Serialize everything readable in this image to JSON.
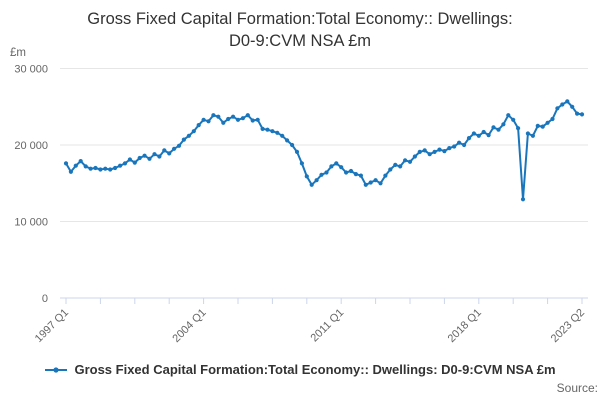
{
  "header": {
    "title_line1": "Gross Fixed Capital Formation:Total Economy:: Dwellings:",
    "title_line2": "D0-9:CVM NSA £m"
  },
  "legend": {
    "label": "Gross Fixed Capital Formation:Total Economy:: Dwellings: D0-9:CVM NSA £m"
  },
  "footer": {
    "source_label": "Source:"
  },
  "chart_data": {
    "type": "line",
    "title": "Gross Fixed Capital Formation:Total Economy:: Dwellings: D0-9:CVM NSA £m",
    "series_name": "Gross Fixed Capital Formation:Total Economy:: Dwellings: D0-9:CVM NSA £m",
    "unit": "£m",
    "ylim": [
      0,
      30000
    ],
    "grid": true,
    "legend_position": "bottom",
    "y_ticks": [
      {
        "value": 0,
        "label": "0"
      },
      {
        "value": 10000,
        "label": "10 000"
      },
      {
        "value": 20000,
        "label": "20 000"
      },
      {
        "value": 30000,
        "label": "30 000"
      }
    ],
    "x_tick_every": 7,
    "x_labeled_ticks": [
      {
        "index": 0,
        "label": "1997 Q1"
      },
      {
        "index": 28,
        "label": "2004 Q1"
      },
      {
        "index": 56,
        "label": "2011 Q1"
      },
      {
        "index": 84,
        "label": "2018 Q1"
      },
      {
        "index": 105,
        "label": "2023 Q2"
      }
    ],
    "categories": [
      "1997 Q1",
      "1997 Q2",
      "1997 Q3",
      "1997 Q4",
      "1998 Q1",
      "1998 Q2",
      "1998 Q3",
      "1998 Q4",
      "1999 Q1",
      "1999 Q2",
      "1999 Q3",
      "1999 Q4",
      "2000 Q1",
      "2000 Q2",
      "2000 Q3",
      "2000 Q4",
      "2001 Q1",
      "2001 Q2",
      "2001 Q3",
      "2001 Q4",
      "2002 Q1",
      "2002 Q2",
      "2002 Q3",
      "2002 Q4",
      "2003 Q1",
      "2003 Q2",
      "2003 Q3",
      "2003 Q4",
      "2004 Q1",
      "2004 Q2",
      "2004 Q3",
      "2004 Q4",
      "2005 Q1",
      "2005 Q2",
      "2005 Q3",
      "2005 Q4",
      "2006 Q1",
      "2006 Q2",
      "2006 Q3",
      "2006 Q4",
      "2007 Q1",
      "2007 Q2",
      "2007 Q3",
      "2007 Q4",
      "2008 Q1",
      "2008 Q2",
      "2008 Q3",
      "2008 Q4",
      "2009 Q1",
      "2009 Q2",
      "2009 Q3",
      "2009 Q4",
      "2010 Q1",
      "2010 Q2",
      "2010 Q3",
      "2010 Q4",
      "2011 Q1",
      "2011 Q2",
      "2011 Q3",
      "2011 Q4",
      "2012 Q1",
      "2012 Q2",
      "2012 Q3",
      "2012 Q4",
      "2013 Q1",
      "2013 Q2",
      "2013 Q3",
      "2013 Q4",
      "2014 Q1",
      "2014 Q2",
      "2014 Q3",
      "2014 Q4",
      "2015 Q1",
      "2015 Q2",
      "2015 Q3",
      "2015 Q4",
      "2016 Q1",
      "2016 Q2",
      "2016 Q3",
      "2016 Q4",
      "2017 Q1",
      "2017 Q2",
      "2017 Q3",
      "2017 Q4",
      "2018 Q1",
      "2018 Q2",
      "2018 Q3",
      "2018 Q4",
      "2019 Q1",
      "2019 Q2",
      "2019 Q3",
      "2019 Q4",
      "2020 Q1",
      "2020 Q2",
      "2020 Q3",
      "2020 Q4",
      "2021 Q1",
      "2021 Q2",
      "2021 Q3",
      "2021 Q4",
      "2022 Q1",
      "2022 Q2",
      "2022 Q3",
      "2022 Q4",
      "2023 Q1",
      "2023 Q2"
    ],
    "values": [
      17600,
      16500,
      17300,
      17900,
      17200,
      16900,
      17000,
      16800,
      16900,
      16800,
      17000,
      17300,
      17600,
      18100,
      17700,
      18300,
      18600,
      18200,
      18800,
      18500,
      19300,
      18900,
      19500,
      19900,
      20700,
      21200,
      21800,
      22600,
      23300,
      23100,
      23900,
      23700,
      22900,
      23400,
      23700,
      23300,
      23500,
      23900,
      23200,
      23300,
      22100,
      22000,
      21800,
      21600,
      21200,
      20600,
      20000,
      19100,
      17600,
      15900,
      14800,
      15400,
      16100,
      16400,
      17200,
      17600,
      17100,
      16400,
      16600,
      16200,
      16000,
      14800,
      15100,
      15400,
      15000,
      16000,
      16800,
      17400,
      17200,
      18000,
      17800,
      18500,
      19100,
      19300,
      18800,
      19100,
      19400,
      19200,
      19600,
      19800,
      20300,
      20000,
      20900,
      21500,
      21200,
      21700,
      21300,
      22300,
      22000,
      22700,
      23900,
      23300,
      22200,
      12900,
      21500,
      21200,
      22500,
      22400,
      22900,
      23400,
      24800,
      25300,
      25700,
      25000,
      24100,
      24000
    ],
    "colors": {
      "line": "#1a76bc",
      "grid": "#e6e6e6",
      "axis": "#ccd6eb",
      "labels": "#666666",
      "title": "#333333"
    }
  }
}
